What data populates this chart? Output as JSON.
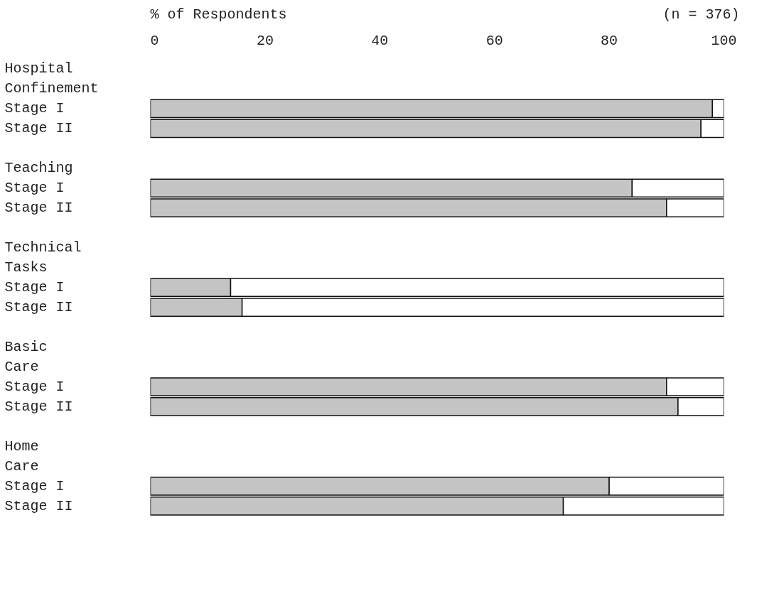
{
  "chart_data": {
    "type": "bar",
    "orientation": "horizontal",
    "stacked": true,
    "xlabel": "% of Respondents",
    "annotations": [
      "(n = 376)"
    ],
    "categories": [
      "Hospital Confinement",
      "Stage I",
      "Stage II",
      "Teaching",
      "Stage I",
      "Stage II",
      "Technical Tasks",
      "Stage I",
      "Stage II",
      "Basic Care",
      "Stage I",
      "Stage II",
      "Home Care",
      "Stage I",
      "Stage II"
    ],
    "series": [
      {
        "color": "#c4c4c4",
        "values": [
          null,
          98,
          96,
          null,
          84,
          90,
          null,
          14,
          16,
          null,
          90,
          92,
          null,
          80,
          72
        ]
      },
      {
        "color": "#ffffff",
        "values": [
          null,
          2,
          4,
          null,
          16,
          10,
          null,
          86,
          84,
          null,
          10,
          8,
          null,
          20,
          28
        ]
      }
    ],
    "xlim": [
      0,
      100
    ],
    "xticks": [
      0,
      20,
      40,
      60,
      80,
      100
    ],
    "grid": false
  }
}
